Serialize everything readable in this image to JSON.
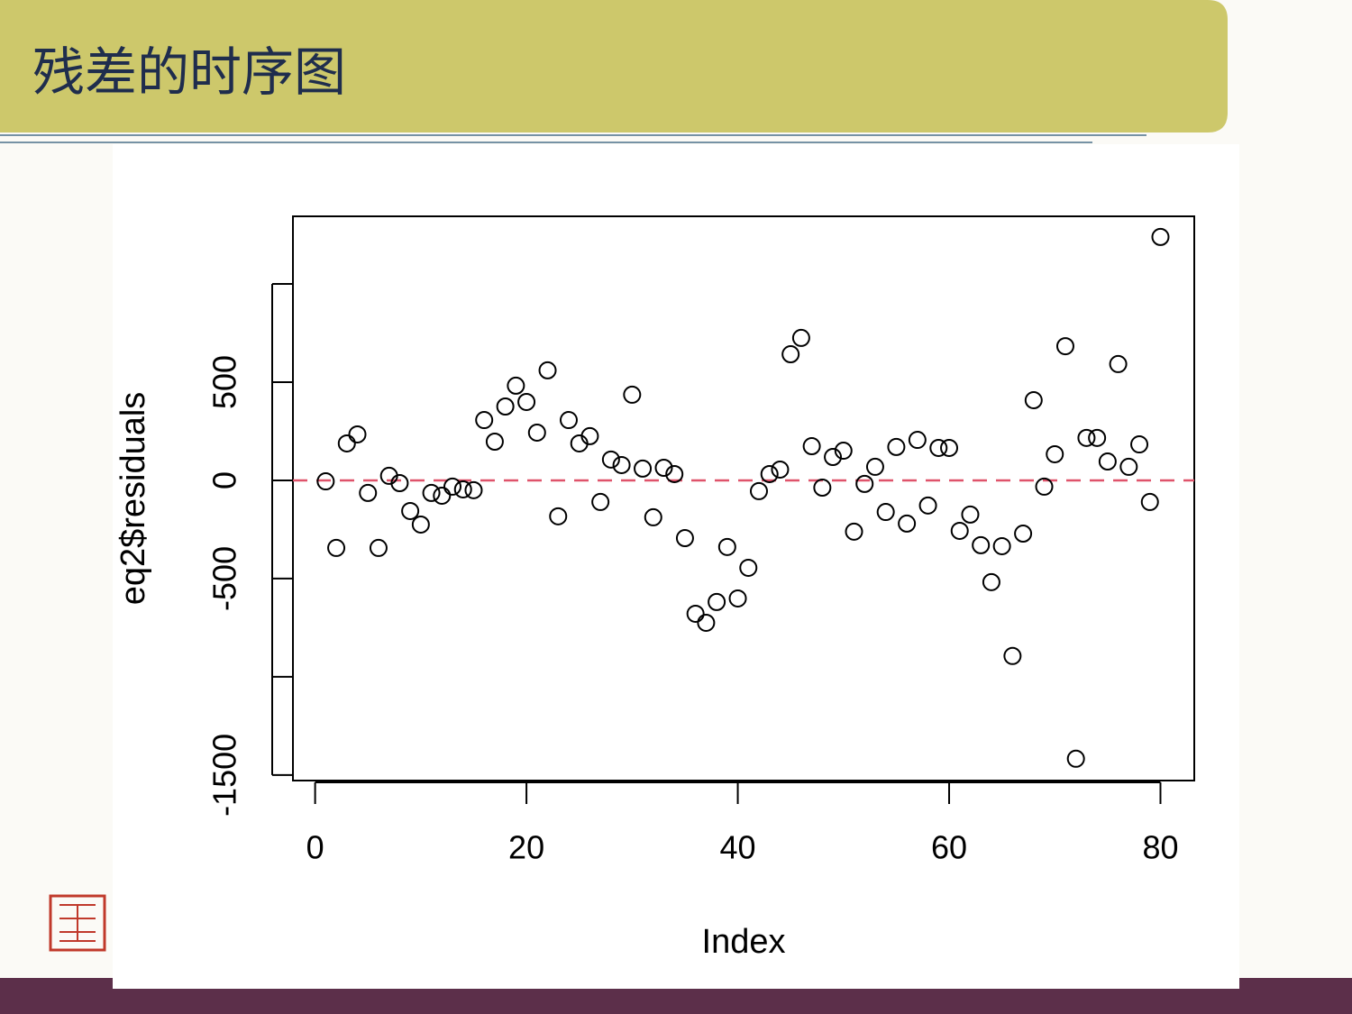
{
  "header": {
    "title": "残差的时序图"
  },
  "chart_data": {
    "type": "scatter",
    "x_label": "Index",
    "y_label": "eq2$residuals",
    "x": [
      1,
      2,
      3,
      4,
      5,
      6,
      7,
      8,
      9,
      10,
      11,
      12,
      13,
      14,
      15,
      16,
      17,
      18,
      19,
      20,
      21,
      22,
      23,
      24,
      25,
      26,
      27,
      28,
      29,
      30,
      31,
      32,
      33,
      34,
      35,
      36,
      37,
      38,
      39,
      40,
      41,
      42,
      43,
      44,
      45,
      46,
      47,
      48,
      49,
      50,
      51,
      52,
      53,
      54,
      55,
      56,
      57,
      58,
      59,
      60,
      61,
      62,
      63,
      64,
      65,
      66,
      67,
      68,
      69,
      70,
      71,
      72,
      73,
      74,
      75,
      76,
      77,
      78,
      79,
      80
    ],
    "values": [
      -5,
      -344,
      188,
      234,
      -64,
      -344,
      23,
      -14,
      -156,
      -225,
      -64,
      -78,
      -32,
      -46,
      -50,
      307,
      197,
      376,
      482,
      399,
      243,
      560,
      -183,
      307,
      188,
      225,
      -110,
      106,
      78,
      436,
      60,
      -188,
      64,
      32,
      -294,
      -679,
      -725,
      -619,
      -339,
      -601,
      -445,
      -55,
      32,
      55,
      642,
      725,
      174,
      -37,
      119,
      151,
      -261,
      -18,
      69,
      -161,
      170,
      -220,
      206,
      -128,
      165,
      165,
      -257,
      -174,
      -330,
      -518,
      -335,
      -894,
      -271,
      408,
      -32,
      133,
      683,
      -1417,
      216,
      216,
      96,
      592,
      69,
      183,
      -110,
      1239
    ],
    "color": "#000000",
    "xlim": [
      -2.1,
      83.2
    ],
    "ylim": [
      -1528,
      1344
    ],
    "xticks": [
      0,
      20,
      40,
      60,
      80
    ],
    "yticks": [
      -1500,
      {
        "value": -1000,
        "label": null
      },
      -500,
      0,
      500,
      {
        "value": 1000,
        "label": null
      }
    ],
    "hline": 0,
    "hline_color": "#DF536B"
  }
}
